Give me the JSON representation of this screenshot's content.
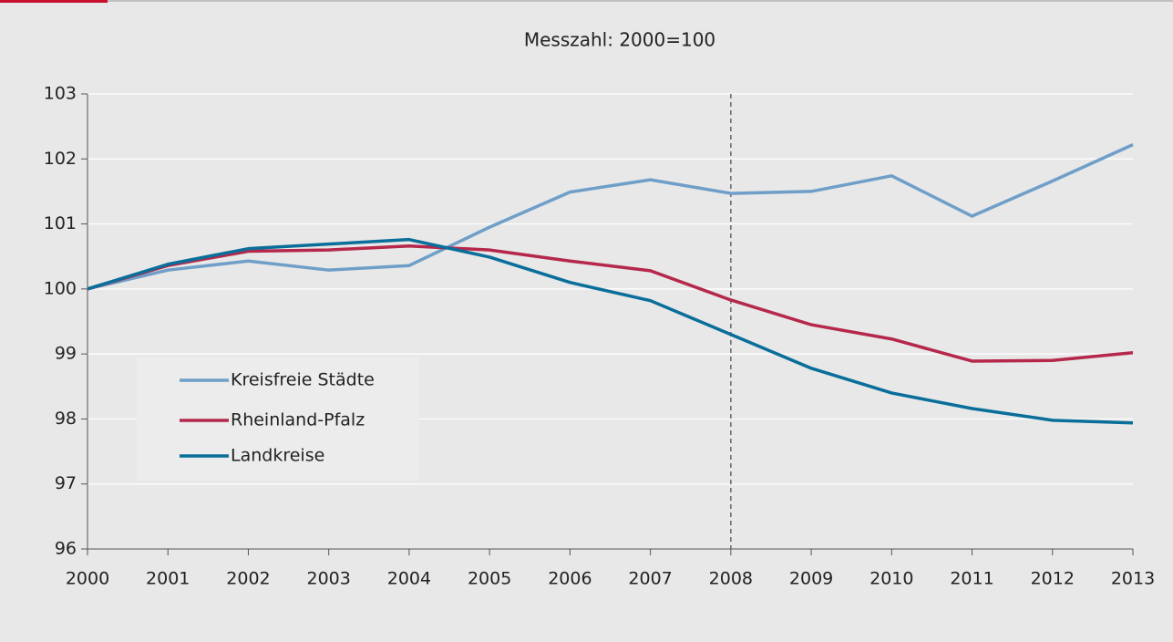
{
  "chart_data": {
    "type": "line",
    "title": "Messzahl: 2000=100",
    "categories": [
      "2000",
      "2001",
      "2002",
      "2003",
      "2004",
      "2005",
      "2006",
      "2007",
      "2008",
      "2009",
      "2010",
      "2011",
      "2012",
      "2013"
    ],
    "series": [
      {
        "name": "Kreisfreie Städte",
        "color": "#6f9fc8",
        "values": [
          100,
          100.29,
          100.43,
          100.29,
          100.36,
          100.95,
          101.49,
          101.68,
          101.47,
          101.5,
          101.74,
          101.12,
          101.66,
          102.22
        ]
      },
      {
        "name": "Rheinland-Pfalz",
        "color": "#b5284c",
        "values": [
          100,
          100.36,
          100.58,
          100.6,
          100.66,
          100.6,
          100.43,
          100.28,
          99.83,
          99.45,
          99.23,
          98.89,
          98.9,
          99.02
        ]
      },
      {
        "name": "Landkreise",
        "color": "#0a6e9a",
        "values": [
          100,
          100.38,
          100.62,
          100.69,
          100.76,
          100.49,
          100.1,
          99.82,
          99.3,
          98.78,
          98.4,
          98.16,
          97.98,
          97.94
        ]
      }
    ],
    "ylim": [
      96,
      103
    ],
    "yticks": [
      96,
      97,
      98,
      99,
      100,
      101,
      102,
      103
    ],
    "grid": true,
    "vline": "2008",
    "legend": "lower left"
  }
}
